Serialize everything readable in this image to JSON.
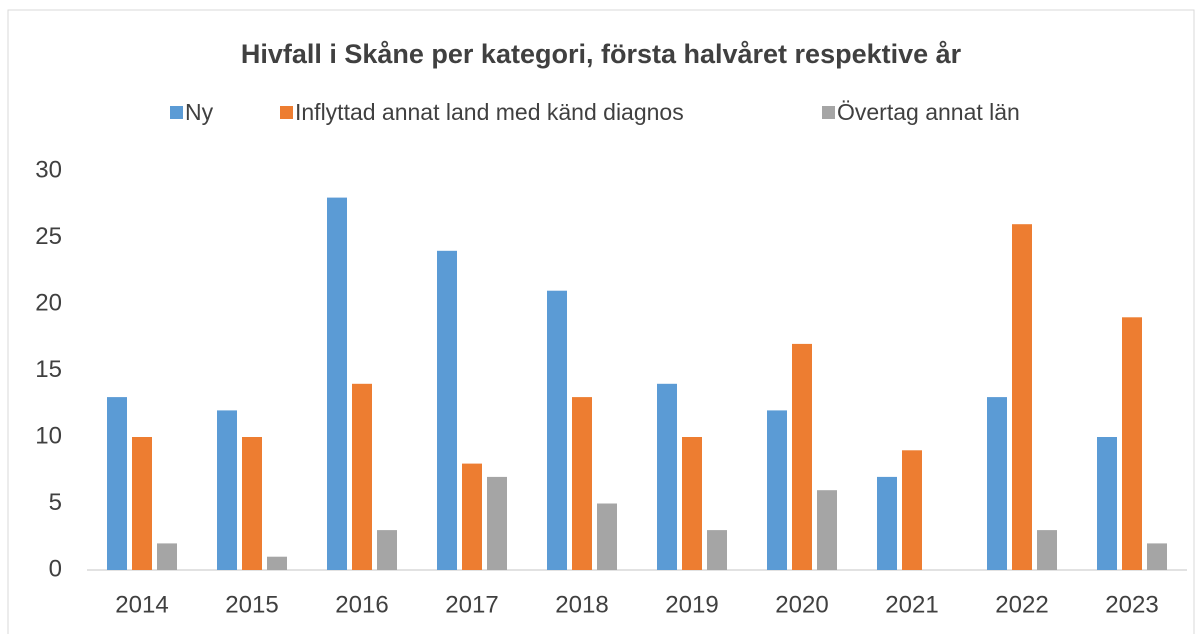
{
  "chart_data": {
    "type": "bar",
    "title": "Hivfall i Skåne per kategori, första halvåret respektive år",
    "categories": [
      "2014",
      "2015",
      "2016",
      "2017",
      "2018",
      "2019",
      "2020",
      "2021",
      "2022",
      "2023"
    ],
    "series": [
      {
        "name": "Ny",
        "color": "#5b9bd5",
        "values": [
          13,
          12,
          28,
          24,
          21,
          14,
          12,
          7,
          13,
          10
        ]
      },
      {
        "name": "Inflyttad annat land med känd diagnos",
        "color": "#ed7d31",
        "values": [
          10,
          10,
          14,
          8,
          13,
          10,
          17,
          9,
          26,
          19
        ]
      },
      {
        "name": "Övertag annat län",
        "color": "#a5a5a5",
        "values": [
          2,
          1,
          3,
          7,
          5,
          3,
          6,
          0,
          3,
          2
        ]
      }
    ],
    "ylim": [
      0,
      30
    ],
    "yticks": [
      0,
      5,
      10,
      15,
      20,
      25,
      30
    ],
    "grid": false,
    "legend": "top"
  }
}
